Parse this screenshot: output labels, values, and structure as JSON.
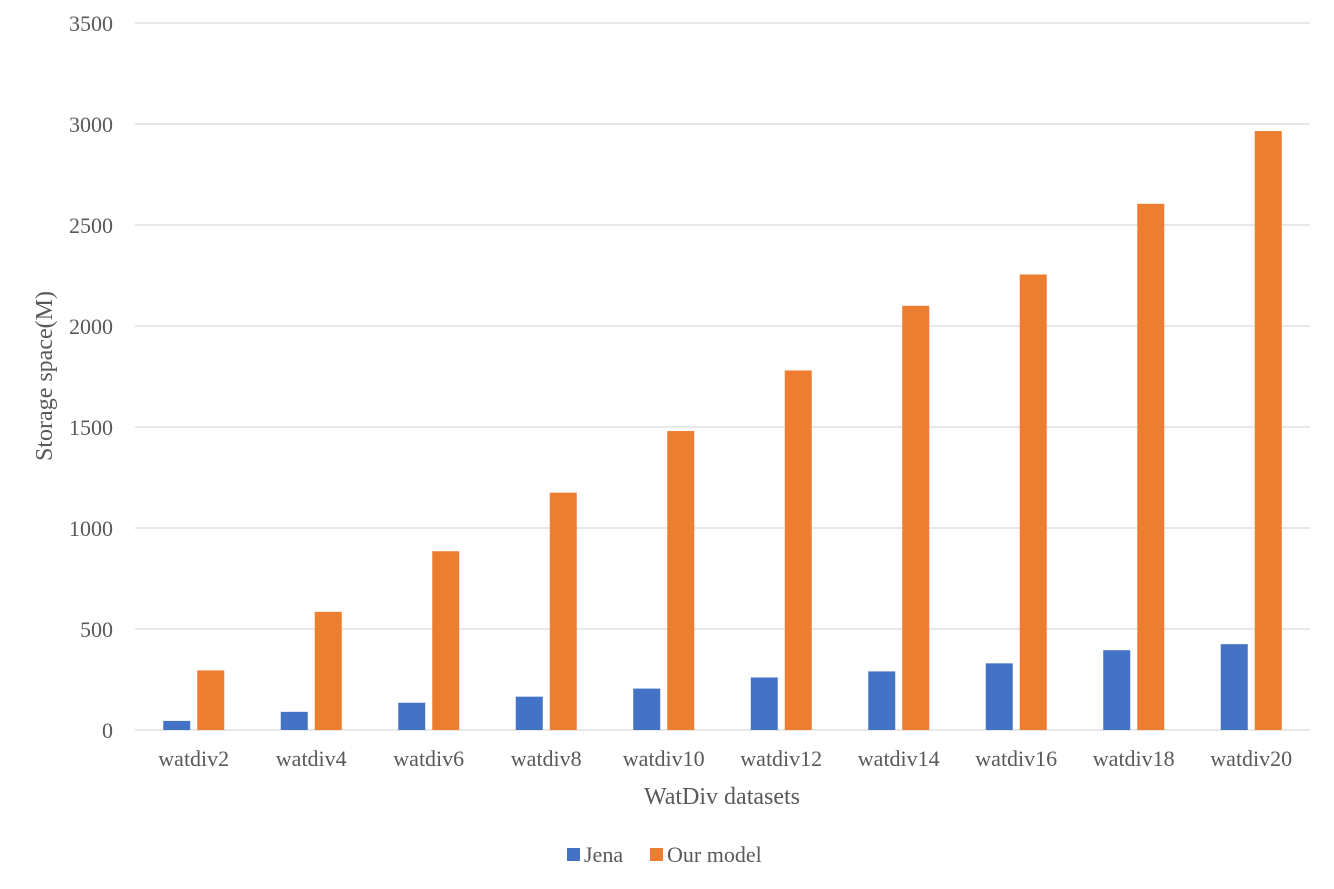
{
  "chart_data": {
    "type": "bar",
    "title": "",
    "xlabel": "WatDiv datasets",
    "ylabel": "Storage space(M)",
    "ylim": [
      0,
      3500
    ],
    "yticks": [
      0,
      500,
      1000,
      1500,
      2000,
      2500,
      3000,
      3500
    ],
    "grid": true,
    "legend_position": "bottom",
    "categories": [
      "watdiv2",
      "watdiv4",
      "watdiv6",
      "watdiv8",
      "watdiv10",
      "watdiv12",
      "watdiv14",
      "watdiv16",
      "watdiv18",
      "watdiv20"
    ],
    "series": [
      {
        "name": "Jena",
        "color": "#4472c4",
        "values": [
          45,
          90,
          135,
          165,
          205,
          260,
          290,
          330,
          395,
          425
        ]
      },
      {
        "name": "Our model",
        "color": "#ed7d31",
        "values": [
          295,
          585,
          885,
          1175,
          1480,
          1780,
          2100,
          2255,
          2605,
          2965
        ]
      }
    ]
  }
}
